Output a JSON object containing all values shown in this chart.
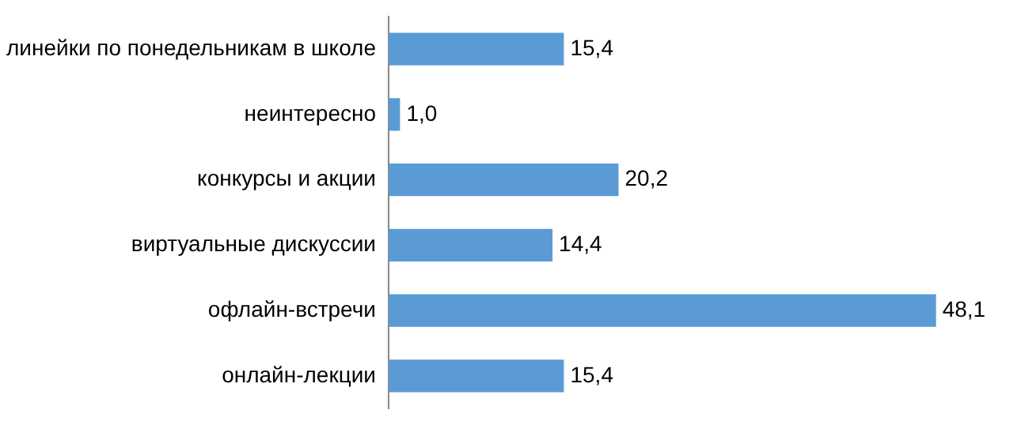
{
  "chart_data": {
    "type": "bar",
    "orientation": "horizontal",
    "categories": [
      "линейки по понедельникам в школе",
      "неинтересно",
      "конкурсы и акции",
      "виртуальные дискуссии",
      "офлайн-встречи",
      "онлайн-лекции"
    ],
    "values": [
      15.4,
      1.0,
      20.2,
      14.4,
      48.1,
      15.4
    ],
    "value_labels": [
      "15,4",
      "1,0",
      "20,2",
      "14,4",
      "48,1",
      "15,4"
    ],
    "color": "#5b9bd5",
    "legend": false,
    "tick_labels": "y"
  }
}
